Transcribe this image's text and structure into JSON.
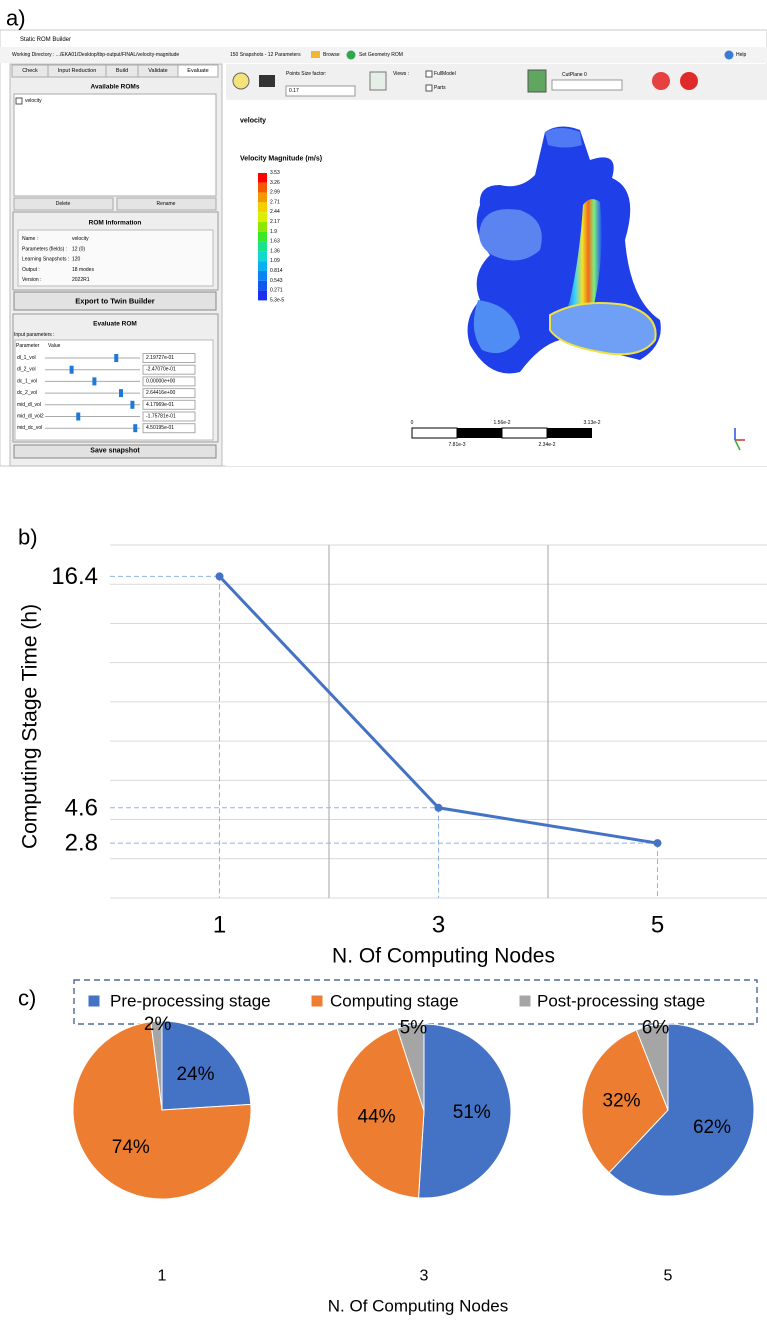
{
  "panel_labels": [
    "a)",
    "b)",
    "c)"
  ],
  "screenshot": {
    "window_title": "Static ROM Builder",
    "working_directory": "Working Directory : .../EKA01/Desktop/tbp-output/FINAL/velocity-magnitude",
    "snapshot_info": "150 Snapshots - 12 Parameters",
    "browse": "Browse",
    "set_geometry": "Set Geometry ROM",
    "help": "Help",
    "tabs": [
      "Check",
      "Input Reduction",
      "Build",
      "Validate",
      "Evaluate"
    ],
    "available_roms": {
      "title": "Available ROMs",
      "items": [
        "velocity"
      ],
      "buttons": [
        "Delete",
        "Rename"
      ]
    },
    "rom_information": {
      "title": "ROM Information",
      "rows": [
        [
          "Name :",
          "velocity"
        ],
        [
          "Parameters (fields) :",
          "12 (0)"
        ],
        [
          "Learning Snapshots :",
          "120"
        ],
        [
          "Output :",
          "18 modes"
        ],
        [
          "Version :",
          "2022R1"
        ]
      ]
    },
    "export_button": "Export to Twin Builder",
    "evaluate_rom": {
      "title": "Evaluate ROM",
      "input_label": "Input parameters :",
      "columns": [
        "Parameter",
        "Value"
      ],
      "rows": [
        [
          "dl_1_vol",
          "2.19727e-01"
        ],
        [
          "dl_2_vol",
          "-2.47070e-01"
        ],
        [
          "dc_1_vol",
          "0.00000e+00"
        ],
        [
          "dc_2_vol",
          "2.64416e+00"
        ],
        [
          "mid_dl_vol",
          "4.17969e-01"
        ],
        [
          "mid_dl_vol2",
          "-1.75781e-01"
        ],
        [
          "mid_dc_vol",
          "4.50195e-01"
        ]
      ],
      "save_button": "Save snapshot"
    },
    "toolbar": {
      "points_size_label": "Points Size factor:",
      "points_size_value": "0.17",
      "views": "Views :",
      "full_model": "FullModel",
      "parts": "Parts",
      "cut_plane": "CutPlane 0"
    },
    "viewer": {
      "field": "velocity",
      "legend_title": "Velocity Magnitude (m/s)",
      "legend_labels": [
        "3.53",
        "3.26",
        "2.99",
        "2.71",
        "2.44",
        "2.17",
        "1.9",
        "1.63",
        "1.36",
        "1.09",
        "0.814",
        "0.543",
        "0.271",
        "5.3e-5"
      ],
      "scale_labels_top": [
        "0",
        "1.56e-2",
        "3.13e-2"
      ],
      "scale_labels_bottom": [
        "7.81e-3",
        "2.34e-2"
      ]
    }
  },
  "chart_data": [
    {
      "type": "line",
      "ylabel": "Computing Stage Time (h)",
      "xlabel": "N. Of Computing Nodes",
      "x": [
        1,
        3,
        5
      ],
      "values": [
        16.4,
        4.6,
        2.8
      ],
      "color": "#4472c4",
      "xlim": [
        0,
        6
      ],
      "ylim": [
        0,
        18
      ],
      "xticks": [
        1,
        3,
        5
      ],
      "yticks": [
        2.8,
        4.6,
        16.4
      ],
      "xgrid": [
        2,
        4
      ],
      "ygrid": [
        0,
        2,
        4,
        6,
        8,
        10,
        12,
        14,
        16,
        18
      ],
      "guides": true
    },
    {
      "type": "pie",
      "xlabel": "N. Of Computing Nodes",
      "categories": [
        "Pre-processing stage",
        "Computing stage",
        "Post-processing stage"
      ],
      "colors": [
        "#4472c4",
        "#ed7d31",
        "#a5a5a5"
      ],
      "pies": [
        {
          "label": "1",
          "values": [
            24,
            74,
            2
          ],
          "value_labels": [
            "24%",
            "74%",
            "2%"
          ]
        },
        {
          "label": "3",
          "values": [
            51,
            44,
            5
          ],
          "value_labels": [
            "51%",
            "44%",
            "5%"
          ]
        },
        {
          "label": "5",
          "values": [
            62,
            32,
            6
          ],
          "value_labels": [
            "62%",
            "32%",
            "6%"
          ]
        }
      ]
    }
  ]
}
